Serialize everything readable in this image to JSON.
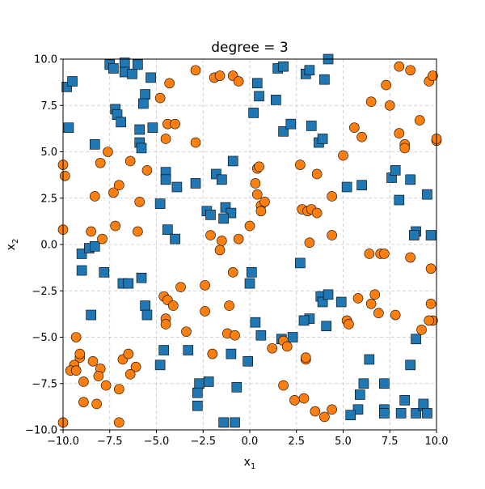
{
  "chart_data": {
    "type": "scatter",
    "title": "degree  = 3",
    "xlabel_base": "x",
    "xlabel_sub": "1",
    "ylabel_base": "x",
    "ylabel_sub": "2",
    "xlim": [
      -10,
      10
    ],
    "ylim": [
      -10,
      10
    ],
    "xticks": [
      -10.0,
      -7.5,
      -5.0,
      -2.5,
      0.0,
      2.5,
      5.0,
      7.5,
      10.0
    ],
    "yticks": [
      -10.0,
      -7.5,
      -5.0,
      -2.5,
      0.0,
      2.5,
      5.0,
      7.5,
      10.0
    ],
    "xtick_labels": [
      "−10.0",
      "−7.5",
      "−5.0",
      "−2.5",
      "0.0",
      "2.5",
      "5.0",
      "7.5",
      "10.0"
    ],
    "ytick_labels": [
      "−10.0",
      "−7.5",
      "−5.0",
      "−2.5",
      "0.0",
      "2.5",
      "5.0",
      "7.5",
      "10.0"
    ],
    "grid": true,
    "series": [
      {
        "marker": "square",
        "color": "#1f77b4",
        "edge_color": "#000000",
        "points": [
          [
            -9.8,
            8.5
          ],
          [
            -9.5,
            8.8
          ],
          [
            -9.7,
            6.3
          ],
          [
            -7.5,
            9.7
          ],
          [
            -7.3,
            9.5
          ],
          [
            -6.7,
            9.8
          ],
          [
            -6.0,
            9.7
          ],
          [
            -6.7,
            9.3
          ],
          [
            -6.3,
            9.2
          ],
          [
            -5.3,
            9.0
          ],
          [
            -5.6,
            8.1
          ],
          [
            -5.7,
            7.6
          ],
          [
            -7.2,
            7.3
          ],
          [
            -7.1,
            7.0
          ],
          [
            -6.9,
            6.6
          ],
          [
            -8.3,
            5.4
          ],
          [
            -5.2,
            6.3
          ],
          [
            -5.9,
            6.2
          ],
          [
            -5.9,
            5.5
          ],
          [
            -5.8,
            5.2
          ],
          [
            -4.5,
            3.9
          ],
          [
            -4.5,
            3.5
          ],
          [
            -3.9,
            3.1
          ],
          [
            -2.9,
            3.3
          ],
          [
            -1.8,
            3.8
          ],
          [
            -1.5,
            3.5
          ],
          [
            -0.9,
            4.5
          ],
          [
            -2.3,
            1.8
          ],
          [
            -2.1,
            1.6
          ],
          [
            -1.3,
            2.0
          ],
          [
            -1.0,
            1.7
          ],
          [
            -1.4,
            1.4
          ],
          [
            -4.8,
            2.2
          ],
          [
            -4.4,
            0.8
          ],
          [
            -4.0,
            0.3
          ],
          [
            0.2,
            7.1
          ],
          [
            0.4,
            8.7
          ],
          [
            0.5,
            8.0
          ],
          [
            1.4,
            7.8
          ],
          [
            1.5,
            9.5
          ],
          [
            1.8,
            9.6
          ],
          [
            1.8,
            6.1
          ],
          [
            2.2,
            6.5
          ],
          [
            3.0,
            9.2
          ],
          [
            3.2,
            9.4
          ],
          [
            3.3,
            6.4
          ],
          [
            4.0,
            8.9
          ],
          [
            4.2,
            10.0
          ],
          [
            3.7,
            5.5
          ],
          [
            3.9,
            5.7
          ],
          [
            5.2,
            3.1
          ],
          [
            6.0,
            3.2
          ],
          [
            7.6,
            3.6
          ],
          [
            7.8,
            4.0
          ],
          [
            8.0,
            2.4
          ],
          [
            8.6,
            3.5
          ],
          [
            9.5,
            2.7
          ],
          [
            8.9,
            0.7
          ],
          [
            8.8,
            0.5
          ],
          [
            9.7,
            0.5
          ],
          [
            -9.0,
            -0.5
          ],
          [
            -8.6,
            -0.2
          ],
          [
            -8.3,
            -0.1
          ],
          [
            -9.0,
            -1.4
          ],
          [
            -7.8,
            -1.5
          ],
          [
            -6.8,
            -2.1
          ],
          [
            -6.5,
            -2.1
          ],
          [
            -5.8,
            -1.8
          ],
          [
            -5.6,
            -3.3
          ],
          [
            -5.5,
            -3.8
          ],
          [
            -8.5,
            -3.8
          ],
          [
            0.1,
            -1.5
          ],
          [
            0.0,
            -2.1
          ],
          [
            0.3,
            -4.2
          ],
          [
            0.6,
            -4.9
          ],
          [
            2.3,
            -5.0
          ],
          [
            1.7,
            -5.1
          ],
          [
            -1.0,
            -5.9
          ],
          [
            -0.7,
            -7.7
          ],
          [
            -0.1,
            -6.3
          ],
          [
            -2.7,
            -7.5
          ],
          [
            -2.2,
            -7.4
          ],
          [
            -2.8,
            -8.0
          ],
          [
            -2.8,
            -8.7
          ],
          [
            -1.4,
            -9.6
          ],
          [
            -0.8,
            -9.6
          ],
          [
            -4.6,
            -5.7
          ],
          [
            -3.3,
            -5.7
          ],
          [
            -4.8,
            -6.5
          ],
          [
            2.7,
            -1.0
          ],
          [
            3.2,
            -4.0
          ],
          [
            2.9,
            -4.1
          ],
          [
            3.8,
            -2.8
          ],
          [
            3.9,
            -3.1
          ],
          [
            4.2,
            -2.7
          ],
          [
            4.1,
            -4.4
          ],
          [
            4.9,
            -3.1
          ],
          [
            6.4,
            -6.2
          ],
          [
            6.1,
            -7.5
          ],
          [
            5.9,
            -8.1
          ],
          [
            5.8,
            -8.9
          ],
          [
            5.4,
            -9.2
          ],
          [
            7.2,
            -7.5
          ],
          [
            7.2,
            -8.9
          ],
          [
            7.2,
            -9.1
          ],
          [
            8.1,
            -9.1
          ],
          [
            8.3,
            -8.4
          ],
          [
            8.6,
            -6.5
          ],
          [
            8.9,
            -5.1
          ],
          [
            8.9,
            -9.1
          ],
          [
            9.3,
            -8.7
          ],
          [
            9.3,
            -8.6
          ],
          [
            9.5,
            -9.1
          ]
        ]
      },
      {
        "marker": "circle",
        "color": "#ff7f0e",
        "edge_color": "#000000",
        "points": [
          [
            -10.0,
            4.3
          ],
          [
            -9.9,
            3.7
          ],
          [
            -10.0,
            0.8
          ],
          [
            -8.0,
            4.4
          ],
          [
            -7.6,
            5.0
          ],
          [
            -7.3,
            2.8
          ],
          [
            -7.0,
            3.2
          ],
          [
            -6.4,
            4.5
          ],
          [
            -8.3,
            2.6
          ],
          [
            -8.5,
            0.7
          ],
          [
            -7.9,
            0.3
          ],
          [
            -7.2,
            1.0
          ],
          [
            -6.0,
            0.7
          ],
          [
            -5.9,
            2.3
          ],
          [
            -5.5,
            4.0
          ],
          [
            -4.8,
            7.9
          ],
          [
            -4.3,
            8.7
          ],
          [
            -4.4,
            6.5
          ],
          [
            -4.0,
            6.5
          ],
          [
            -4.5,
            5.7
          ],
          [
            -2.9,
            9.4
          ],
          [
            -1.9,
            9.0
          ],
          [
            -1.6,
            9.1
          ],
          [
            -0.9,
            9.1
          ],
          [
            -0.6,
            8.8
          ],
          [
            -2.9,
            5.5
          ],
          [
            0.4,
            4.1
          ],
          [
            0.5,
            4.2
          ],
          [
            0.3,
            3.3
          ],
          [
            0.4,
            2.7
          ],
          [
            0.6,
            2.1
          ],
          [
            0.6,
            1.8
          ],
          [
            0.8,
            2.3
          ],
          [
            0.0,
            1.0
          ],
          [
            -1.5,
            0.2
          ],
          [
            -2.1,
            0.5
          ],
          [
            -0.6,
            0.3
          ],
          [
            -1.6,
            -0.3
          ],
          [
            -0.9,
            -1.5
          ],
          [
            -2.4,
            -2.2
          ],
          [
            -3.7,
            -2.3
          ],
          [
            -4.6,
            -2.8
          ],
          [
            -4.4,
            -3.0
          ],
          [
            -4.1,
            -3.3
          ],
          [
            -4.5,
            -4.0
          ],
          [
            -4.5,
            -4.3
          ],
          [
            -3.4,
            -4.7
          ],
          [
            -2.4,
            -3.6
          ],
          [
            -1.1,
            -3.3
          ],
          [
            -1.2,
            -4.8
          ],
          [
            -0.8,
            -4.9
          ],
          [
            -2.0,
            -5.9
          ],
          [
            2.7,
            4.3
          ],
          [
            2.8,
            1.9
          ],
          [
            3.1,
            1.8
          ],
          [
            3.3,
            1.9
          ],
          [
            3.6,
            1.7
          ],
          [
            3.6,
            3.8
          ],
          [
            4.4,
            2.6
          ],
          [
            5.0,
            4.8
          ],
          [
            6.0,
            5.8
          ],
          [
            6.5,
            7.7
          ],
          [
            5.6,
            6.3
          ],
          [
            7.3,
            8.6
          ],
          [
            7.5,
            7.5
          ],
          [
            8.0,
            9.6
          ],
          [
            8.6,
            9.4
          ],
          [
            8.0,
            6.0
          ],
          [
            8.3,
            5.4
          ],
          [
            8.3,
            5.2
          ],
          [
            9.1,
            6.7
          ],
          [
            9.6,
            8.8
          ],
          [
            9.8,
            9.1
          ],
          [
            10.0,
            5.6
          ],
          [
            10.0,
            5.7
          ],
          [
            3.2,
            0.1
          ],
          [
            4.4,
            0.5
          ],
          [
            6.4,
            -0.5
          ],
          [
            7.0,
            -0.5
          ],
          [
            7.2,
            -0.5
          ],
          [
            8.6,
            -0.7
          ],
          [
            9.7,
            -1.3
          ],
          [
            5.8,
            -2.9
          ],
          [
            6.7,
            -2.7
          ],
          [
            6.5,
            -3.2
          ],
          [
            6.9,
            -3.7
          ],
          [
            7.8,
            -3.8
          ],
          [
            9.7,
            -3.2
          ],
          [
            9.8,
            -4.1
          ],
          [
            9.6,
            -4.1
          ],
          [
            9.2,
            -4.6
          ],
          [
            5.2,
            -4.1
          ],
          [
            5.3,
            -4.3
          ],
          [
            1.2,
            -5.6
          ],
          [
            1.8,
            -5.2
          ],
          [
            2.0,
            -5.5
          ],
          [
            3.0,
            -6.2
          ],
          [
            3.0,
            -6.1
          ],
          [
            1.8,
            -7.6
          ],
          [
            2.4,
            -8.4
          ],
          [
            2.9,
            -8.3
          ],
          [
            3.5,
            -9.0
          ],
          [
            4.0,
            -9.3
          ],
          [
            4.4,
            -8.9
          ],
          [
            -9.3,
            -5.0
          ],
          [
            -9.1,
            -6.1
          ],
          [
            -9.1,
            -5.9
          ],
          [
            -9.4,
            -6.5
          ],
          [
            -9.6,
            -6.8
          ],
          [
            -9.3,
            -6.8
          ],
          [
            -8.4,
            -6.3
          ],
          [
            -8.0,
            -6.7
          ],
          [
            -8.1,
            -7.1
          ],
          [
            -8.9,
            -7.4
          ],
          [
            -7.7,
            -7.6
          ],
          [
            -8.9,
            -8.5
          ],
          [
            -8.2,
            -8.6
          ],
          [
            -7.0,
            -7.8
          ],
          [
            -6.8,
            -6.2
          ],
          [
            -6.5,
            -5.9
          ],
          [
            -6.1,
            -6.6
          ],
          [
            -6.4,
            -7.0
          ],
          [
            -7.0,
            -9.6
          ],
          [
            -10.0,
            -9.6
          ]
        ]
      }
    ]
  }
}
